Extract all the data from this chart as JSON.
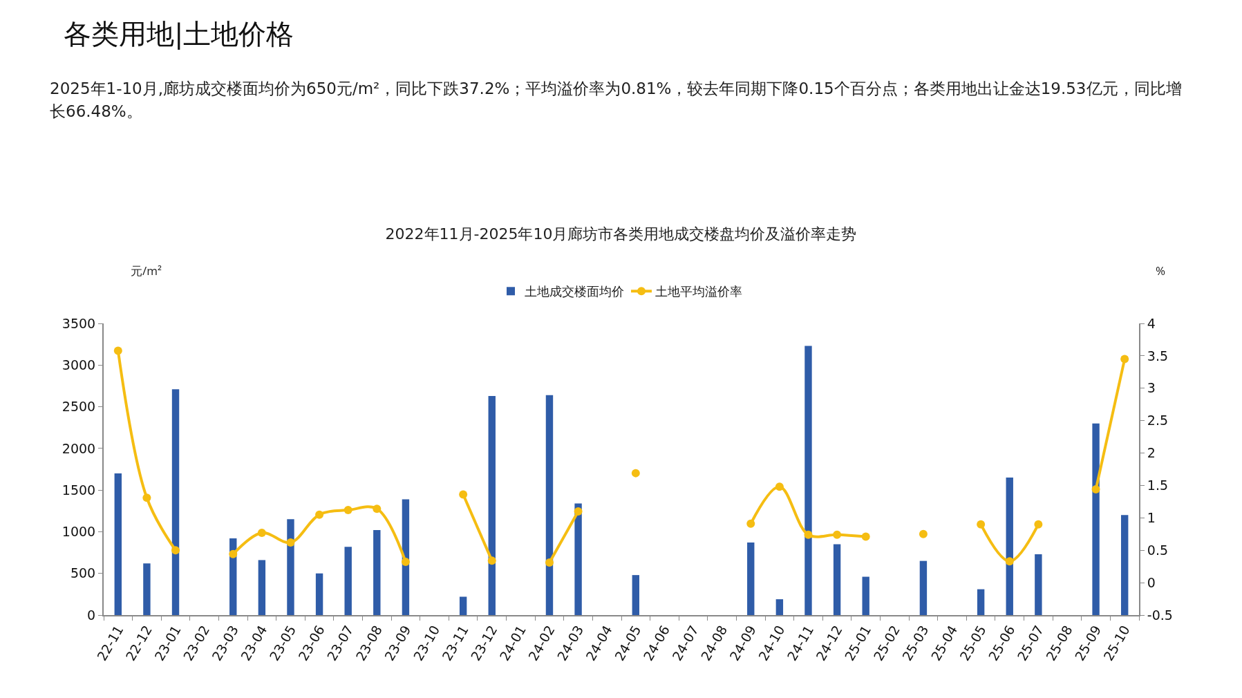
{
  "chart_data": {
    "type": "bar",
    "title": "2022年11月-2025年10月廊坊市各类用地成交楼盘均价及溢价率走势",
    "annotations": [
      "各类用地|土地价格",
      "2025年1-10月,廊坊成交楼面均价为650元/m²，同比下跌37.2%；平均溢价率为0.81%，较去年同期下降0.15个百分点；各类用地出让金达19.53亿元，同比增长66.48%。"
    ],
    "ylabel": "元/m²",
    "y2label": "%",
    "categories": [
      "22-11",
      "22-12",
      "23-01",
      "23-02",
      "23-03",
      "23-04",
      "23-05",
      "23-06",
      "23-07",
      "23-08",
      "23-09",
      "23-10",
      "23-11",
      "23-12",
      "24-01",
      "24-02",
      "24-03",
      "24-04",
      "24-05",
      "24-06",
      "24-07",
      "24-08",
      "24-09",
      "24-10",
      "24-11",
      "24-12",
      "25-01",
      "25-02",
      "25-03",
      "25-04",
      "25-05",
      "25-06",
      "25-07",
      "25-08",
      "25-09",
      "25-10"
    ],
    "series": [
      {
        "name": "土地成交楼面均价",
        "color": "#2f5ca8",
        "values": [
          1700,
          620,
          2710,
          null,
          920,
          660,
          1150,
          500,
          820,
          1020,
          1390,
          null,
          220,
          2630,
          null,
          2640,
          1340,
          null,
          480,
          null,
          null,
          null,
          870,
          190,
          3230,
          850,
          460,
          null,
          650,
          null,
          310,
          1650,
          730,
          null,
          2300,
          1200
        ]
      },
      {
        "name": "土地平均溢价率",
        "type": "line",
        "axis": "y2",
        "color": "#f5bd12",
        "values": [
          3.58,
          1.31,
          0.5,
          null,
          0.44,
          0.77,
          0.62,
          1.05,
          1.12,
          1.14,
          0.32,
          null,
          1.36,
          0.34,
          null,
          0.31,
          1.1,
          null,
          1.69,
          null,
          null,
          null,
          0.91,
          1.48,
          0.74,
          0.74,
          0.71,
          null,
          0.75,
          null,
          0.9,
          0.33,
          0.9,
          null,
          1.44,
          3.45
        ]
      }
    ],
    "ylim": [
      0,
      3500
    ],
    "yticks": [
      0,
      500,
      1000,
      1500,
      2000,
      2500,
      3000,
      3500
    ],
    "y2lim": [
      -0.5,
      4
    ],
    "y2ticks": [
      -0.5,
      0,
      0.5,
      1,
      1.5,
      2,
      2.5,
      3,
      3.5,
      4
    ],
    "legend": "top",
    "grid": false,
    "marker": "circle",
    "line_style": "solid"
  }
}
